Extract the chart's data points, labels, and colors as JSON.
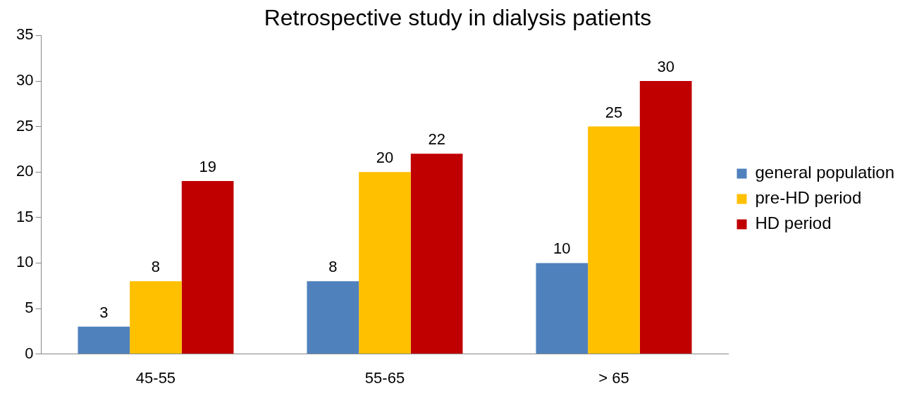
{
  "chart_data": {
    "type": "bar",
    "title": "Retrospective study in dialysis patients",
    "categories": [
      "45-55",
      "55-65",
      "> 65"
    ],
    "series": [
      {
        "name": "general population",
        "color": "#4f81bd",
        "values": [
          3,
          8,
          10
        ]
      },
      {
        "name": "pre-HD period",
        "color": "#ffc000",
        "values": [
          8,
          20,
          25
        ]
      },
      {
        "name": "HD period",
        "color": "#c00000",
        "values": [
          19,
          22,
          30
        ]
      }
    ],
    "ylim": [
      0,
      35
    ],
    "yticks": [
      0,
      5,
      10,
      15,
      20,
      25,
      30,
      35
    ],
    "grid": false,
    "legend": "right",
    "data_labels": true
  }
}
